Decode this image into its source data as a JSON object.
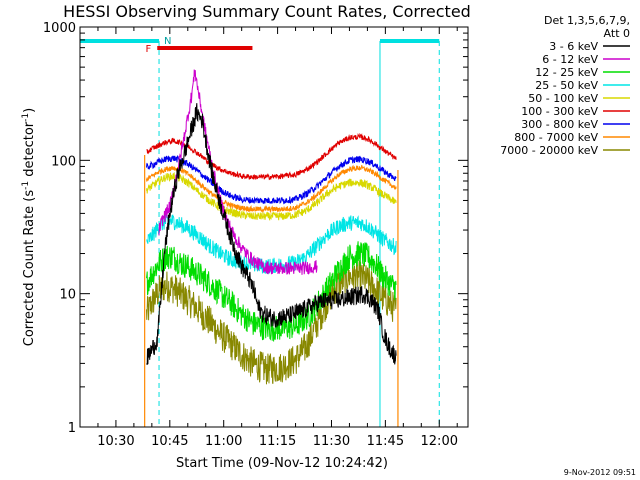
{
  "chart_data": {
    "type": "line",
    "title": "HESSI Observing Summary Count Rates, Corrected",
    "xlabel": "Start Time (09-Nov-12 10:24:42)",
    "ylabel_main": "Corrected Count Rate (s",
    "ylabel_sup1": "-1",
    "ylabel_mid": " detector",
    "ylabel_sup2": "-1",
    "ylabel_end": ")",
    "footer": "9-Nov-2012 09:51",
    "legend_header1": "Det 1,3,5,6,7,9,",
    "legend_header2": "Att 0",
    "x_range_minutes": [
      20,
      128
    ],
    "y_scale": "log",
    "ylim": [
      1,
      1000
    ],
    "x_ticks": [
      {
        "m": 30,
        "label": "10:30"
      },
      {
        "m": 45,
        "label": "10:45"
      },
      {
        "m": 60,
        "label": "11:00"
      },
      {
        "m": 75,
        "label": "11:15"
      },
      {
        "m": 90,
        "label": "11:30"
      },
      {
        "m": 105,
        "label": "11:45"
      },
      {
        "m": 120,
        "label": "12:00"
      }
    ],
    "y_ticks": [
      {
        "v": 1,
        "label": "1"
      },
      {
        "v": 10,
        "label": "10"
      },
      {
        "v": 100,
        "label": "100"
      },
      {
        "v": 1000,
        "label": "1000"
      }
    ],
    "flags": {
      "F_label": "F",
      "N_label": "N",
      "flare_range": [
        41.5,
        68
      ],
      "night_segments": [
        [
          20,
          42
        ],
        [
          103.5,
          120
        ]
      ],
      "night_lines": [
        20,
        42,
        103.5,
        120
      ],
      "data_start": 38,
      "data_end": 108.5
    },
    "series": [
      {
        "name": "3 - 6 keV",
        "color": "#000000",
        "noise": 0.07,
        "points": [
          [
            38.5,
            3.2
          ],
          [
            40,
            3.8
          ],
          [
            41.5,
            4.5
          ],
          [
            42.5,
            9
          ],
          [
            43.5,
            20
          ],
          [
            45,
            40
          ],
          [
            47,
            75
          ],
          [
            49,
            110
          ],
          [
            51,
            170
          ],
          [
            52.5,
            230
          ],
          [
            54,
            200
          ],
          [
            55.5,
            120
          ],
          [
            57,
            75
          ],
          [
            59,
            48
          ],
          [
            61,
            32
          ],
          [
            63,
            22
          ],
          [
            65,
            16
          ],
          [
            67,
            13
          ],
          [
            68.5,
            10.5
          ],
          [
            69.5,
            8
          ],
          [
            71,
            7
          ],
          [
            74,
            6.5
          ],
          [
            78,
            6.8
          ],
          [
            82,
            7.5
          ],
          [
            86,
            8.5
          ],
          [
            88,
            8.8
          ],
          [
            92,
            9
          ],
          [
            96,
            9.5
          ],
          [
            99,
            10
          ],
          [
            101,
            9
          ],
          [
            103,
            7.5
          ],
          [
            104.5,
            5
          ],
          [
            106,
            4
          ],
          [
            108,
            3.3
          ]
        ]
      },
      {
        "name": "6 - 12 keV",
        "color": "#cc00cc",
        "noise": 0.05,
        "points": [
          [
            42,
            30
          ],
          [
            43,
            36
          ],
          [
            45,
            45
          ],
          [
            47,
            80
          ],
          [
            49,
            150
          ],
          [
            51,
            300
          ],
          [
            52,
            470
          ],
          [
            53,
            320
          ],
          [
            55,
            160
          ],
          [
            57,
            85
          ],
          [
            59,
            50
          ],
          [
            61,
            35
          ],
          [
            63,
            27
          ],
          [
            65,
            22
          ],
          [
            67,
            19
          ],
          [
            69,
            17
          ],
          [
            71,
            16
          ],
          [
            74,
            15.5
          ],
          [
            78,
            15.5
          ],
          [
            82,
            15.5
          ],
          [
            86,
            16
          ]
        ]
      },
      {
        "name": "12 - 25 keV",
        "color": "#00dd00",
        "noise": 0.1,
        "points": [
          [
            38.5,
            12
          ],
          [
            40,
            14
          ],
          [
            42,
            17
          ],
          [
            44,
            19
          ],
          [
            46,
            19
          ],
          [
            48,
            17
          ],
          [
            50,
            16
          ],
          [
            53,
            14
          ],
          [
            56,
            12
          ],
          [
            59,
            10
          ],
          [
            62,
            8.5
          ],
          [
            65,
            7
          ],
          [
            68,
            6
          ],
          [
            72,
            5.5
          ],
          [
            76,
            5.5
          ],
          [
            80,
            5.7
          ],
          [
            84,
            7
          ],
          [
            88,
            10
          ],
          [
            92,
            15
          ],
          [
            95,
            19
          ],
          [
            98,
            20
          ],
          [
            100,
            19
          ],
          [
            102,
            17
          ],
          [
            104,
            14
          ],
          [
            106,
            12
          ],
          [
            108,
            11
          ]
        ]
      },
      {
        "name": "25 - 50 keV",
        "color": "#00e5e5",
        "noise": 0.06,
        "points": [
          [
            38.5,
            24
          ],
          [
            40,
            27
          ],
          [
            42,
            32
          ],
          [
            44,
            35
          ],
          [
            46,
            35
          ],
          [
            48,
            33
          ],
          [
            50,
            31
          ],
          [
            53,
            27
          ],
          [
            56,
            23
          ],
          [
            59,
            20
          ],
          [
            62,
            18
          ],
          [
            65,
            17
          ],
          [
            68,
            16.5
          ],
          [
            72,
            16
          ],
          [
            76,
            16.5
          ],
          [
            80,
            17
          ],
          [
            83,
            19
          ],
          [
            86,
            23
          ],
          [
            89,
            28
          ],
          [
            92,
            32
          ],
          [
            95,
            34
          ],
          [
            98,
            34
          ],
          [
            100,
            32
          ],
          [
            102,
            29
          ],
          [
            104,
            26
          ],
          [
            106,
            24
          ],
          [
            108,
            22
          ]
        ]
      },
      {
        "name": "50 - 100 keV",
        "color": "#d8d800",
        "noise": 0.03,
        "points": [
          [
            38.5,
            60
          ],
          [
            40,
            64
          ],
          [
            42,
            70
          ],
          [
            44,
            75
          ],
          [
            46,
            76
          ],
          [
            48,
            73
          ],
          [
            50,
            68
          ],
          [
            53,
            58
          ],
          [
            56,
            50
          ],
          [
            59,
            44
          ],
          [
            62,
            41
          ],
          [
            65,
            39
          ],
          [
            68,
            38
          ],
          [
            72,
            38
          ],
          [
            76,
            38
          ],
          [
            80,
            39
          ],
          [
            83,
            42
          ],
          [
            86,
            48
          ],
          [
            89,
            57
          ],
          [
            92,
            64
          ],
          [
            95,
            68
          ],
          [
            98,
            68
          ],
          [
            100,
            65
          ],
          [
            102,
            61
          ],
          [
            104,
            56
          ],
          [
            106,
            52
          ],
          [
            108,
            48
          ]
        ]
      },
      {
        "name": "100 - 300 keV",
        "color": "#e00000",
        "noise": 0.02,
        "points": [
          [
            38.5,
            115
          ],
          [
            40,
            122
          ],
          [
            42,
            130
          ],
          [
            44,
            137
          ],
          [
            46,
            140
          ],
          [
            48,
            136
          ],
          [
            50,
            128
          ],
          [
            53,
            112
          ],
          [
            56,
            96
          ],
          [
            59,
            86
          ],
          [
            62,
            80
          ],
          [
            65,
            76
          ],
          [
            68,
            75
          ],
          [
            72,
            75
          ],
          [
            76,
            76
          ],
          [
            80,
            78
          ],
          [
            83,
            85
          ],
          [
            86,
            97
          ],
          [
            89,
            115
          ],
          [
            92,
            135
          ],
          [
            95,
            148
          ],
          [
            98,
            150
          ],
          [
            100,
            145
          ],
          [
            102,
            135
          ],
          [
            104,
            122
          ],
          [
            106,
            112
          ],
          [
            108,
            102
          ]
        ]
      },
      {
        "name": "300 - 800 keV",
        "color": "#0000ee",
        "noise": 0.025,
        "points": [
          [
            38.5,
            88
          ],
          [
            40,
            92
          ],
          [
            42,
            98
          ],
          [
            44,
            102
          ],
          [
            46,
            104
          ],
          [
            48,
            100
          ],
          [
            50,
            94
          ],
          [
            53,
            82
          ],
          [
            56,
            70
          ],
          [
            59,
            60
          ],
          [
            62,
            54
          ],
          [
            65,
            51
          ],
          [
            68,
            50
          ],
          [
            72,
            50
          ],
          [
            76,
            50
          ],
          [
            80,
            51
          ],
          [
            83,
            56
          ],
          [
            86,
            64
          ],
          [
            89,
            76
          ],
          [
            92,
            90
          ],
          [
            95,
            100
          ],
          [
            98,
            102
          ],
          [
            100,
            99
          ],
          [
            102,
            93
          ],
          [
            104,
            85
          ],
          [
            106,
            78
          ],
          [
            108,
            72
          ]
        ]
      },
      {
        "name": "800 - 7000 keV",
        "color": "#ff8800",
        "noise": 0.02,
        "points": [
          [
            38.5,
            72
          ],
          [
            40,
            76
          ],
          [
            42,
            82
          ],
          [
            44,
            86
          ],
          [
            46,
            88
          ],
          [
            48,
            85
          ],
          [
            50,
            79
          ],
          [
            53,
            68
          ],
          [
            56,
            58
          ],
          [
            59,
            50
          ],
          [
            62,
            46
          ],
          [
            65,
            44
          ],
          [
            68,
            43
          ],
          [
            72,
            43
          ],
          [
            76,
            43
          ],
          [
            80,
            44
          ],
          [
            83,
            48
          ],
          [
            86,
            55
          ],
          [
            89,
            66
          ],
          [
            92,
            78
          ],
          [
            95,
            86
          ],
          [
            98,
            88
          ],
          [
            100,
            85
          ],
          [
            102,
            80
          ],
          [
            104,
            73
          ],
          [
            106,
            67
          ],
          [
            108,
            62
          ]
        ]
      },
      {
        "name": "7000 - 20000 keV",
        "color": "#888800",
        "noise": 0.12,
        "points": [
          [
            38.5,
            7
          ],
          [
            40,
            8.5
          ],
          [
            42,
            10.5
          ],
          [
            44,
            11.5
          ],
          [
            46,
            11
          ],
          [
            48,
            10
          ],
          [
            50,
            9
          ],
          [
            53,
            7.5
          ],
          [
            56,
            6.2
          ],
          [
            59,
            5
          ],
          [
            62,
            4.2
          ],
          [
            65,
            3.5
          ],
          [
            68,
            3
          ],
          [
            72,
            2.7
          ],
          [
            76,
            2.8
          ],
          [
            80,
            3.2
          ],
          [
            83,
            4
          ],
          [
            86,
            6
          ],
          [
            89,
            9
          ],
          [
            92,
            12
          ],
          [
            95,
            13.5
          ],
          [
            98,
            13.5
          ],
          [
            100,
            12.5
          ],
          [
            102,
            11
          ],
          [
            104,
            9.5
          ],
          [
            106,
            8.5
          ],
          [
            108,
            7.5
          ]
        ]
      }
    ]
  }
}
